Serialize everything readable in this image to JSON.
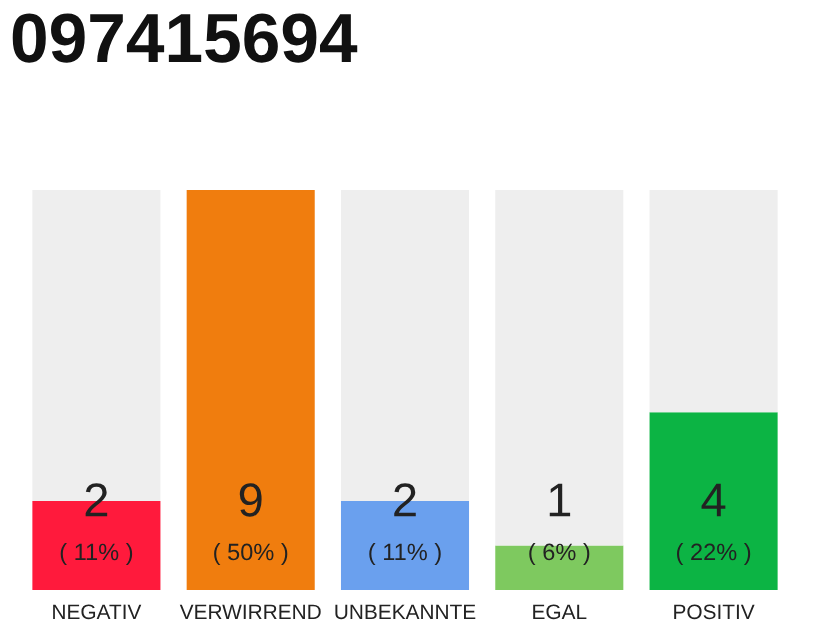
{
  "chart_data": {
    "type": "bar",
    "title": "097415694",
    "stacked": true,
    "categories": [
      "NEGATIV",
      "VERWIRREND",
      "UNBEKANNTE",
      "EGAL",
      "POSITIV"
    ],
    "series": [
      {
        "colors": [
          "#ff1a3c",
          "#f07d0e",
          "#6aa0ee",
          "#7ec95f",
          "#0cb444"
        ],
        "values": [
          2,
          9,
          2,
          1,
          4
        ],
        "value_labels": [
          "2\n( 11% )",
          "9\n( 50% )",
          "2\n( 11% )",
          "1\n( 6% )",
          "4\n( 22% )"
        ]
      },
      {
        "color": "#eeeeee",
        "values": [
          7,
          0,
          7,
          8,
          5
        ]
      }
    ],
    "ylim": [
      0,
      9
    ],
    "tick_labels": "x"
  }
}
